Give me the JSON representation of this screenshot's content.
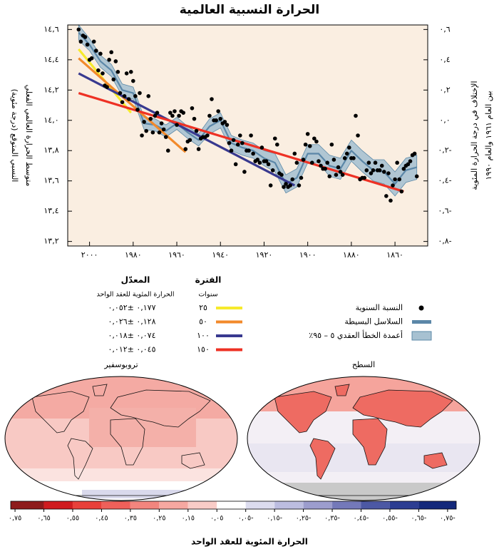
{
  "chart_data": [
    {
      "type": "line",
      "title": "الحرارة النسبية العالمية",
      "ylabel": [
        "متوسط الحرارة العالمي الفعلي",
        "النسبي المتوقع (درجة مئوية)"
      ],
      "y2label": [
        "الإختلاف في درجة الحرارة المئوية",
        "بين العام ١٩٦١ والعام ١٩٩٠"
      ],
      "xlim": [
        2010,
        1845
      ],
      "xticks": [
        {
          "value": 2000,
          "label": "٢٠٠٠"
        },
        {
          "value": 1980,
          "label": "١٩٨٠"
        },
        {
          "value": 1960,
          "label": "١٩٦٠"
        },
        {
          "value": 1940,
          "label": "١٩٤٠"
        },
        {
          "value": 1920,
          "label": "١٩٢٠"
        },
        {
          "value": 1900,
          "label": "١٩٠٠"
        },
        {
          "value": 1880,
          "label": "١٨٨٠"
        },
        {
          "value": 1860,
          "label": "١٨٦٠"
        }
      ],
      "ylim": [
        13.17,
        14.63
      ],
      "yticks": [
        {
          "value": 14.6,
          "label": "١٤,٦"
        },
        {
          "value": 14.4,
          "label": "١٤,٤"
        },
        {
          "value": 14.2,
          "label": "١٤,٢"
        },
        {
          "value": 14.0,
          "label": "١٤,٠"
        },
        {
          "value": 13.8,
          "label": "١٣,٨"
        },
        {
          "value": 13.6,
          "label": "١٣,٦"
        },
        {
          "value": 13.4,
          "label": "١٣,٤"
        },
        {
          "value": 13.2,
          "label": "١٣,٢"
        }
      ],
      "y2lim": [
        -0.83,
        0.63
      ],
      "y2ticks": [
        {
          "value": 0.6,
          "label": "٠,٦"
        },
        {
          "value": 0.4,
          "label": "٠,٤"
        },
        {
          "value": 0.2,
          "label": "٠,٢"
        },
        {
          "value": 0.0,
          "label": "٠,٠"
        },
        {
          "value": -0.2,
          "label": "-٠,٢"
        },
        {
          "value": -0.4,
          "label": "-٠,٤"
        },
        {
          "value": -0.6,
          "label": "-٠,٦"
        },
        {
          "value": -0.8,
          "label": "-٠,٨"
        }
      ],
      "series": [
        {
          "name": "النسبة السنوية",
          "style": "points",
          "color": "#000000",
          "x": [
            1850,
            1851,
            1852,
            1853,
            1854,
            1855,
            1856,
            1857,
            1858,
            1859,
            1860,
            1861,
            1862,
            1863,
            1864,
            1865,
            1866,
            1867,
            1868,
            1869,
            1870,
            1871,
            1872,
            1873,
            1874,
            1875,
            1876,
            1877,
            1878,
            1879,
            1880,
            1881,
            1882,
            1883,
            1884,
            1885,
            1886,
            1887,
            1888,
            1889,
            1890,
            1891,
            1892,
            1893,
            1894,
            1895,
            1896,
            1897,
            1898,
            1899,
            1900,
            1901,
            1902,
            1903,
            1904,
            1905,
            1906,
            1907,
            1908,
            1909,
            1910,
            1911,
            1912,
            1913,
            1914,
            1915,
            1916,
            1917,
            1918,
            1919,
            1920,
            1921,
            1922,
            1923,
            1924,
            1925,
            1926,
            1927,
            1928,
            1929,
            1930,
            1931,
            1932,
            1933,
            1934,
            1935,
            1936,
            1937,
            1938,
            1939,
            1940,
            1941,
            1942,
            1943,
            1944,
            1945,
            1946,
            1947,
            1948,
            1949,
            1950,
            1951,
            1952,
            1953,
            1954,
            1955,
            1956,
            1957,
            1958,
            1959,
            1960,
            1961,
            1962,
            1963,
            1964,
            1965,
            1966,
            1967,
            1968,
            1969,
            1970,
            1971,
            1972,
            1973,
            1974,
            1975,
            1976,
            1977,
            1978,
            1979,
            1980,
            1981,
            1982,
            1983,
            1984,
            1985,
            1986,
            1987,
            1988,
            1989,
            1990,
            1991,
            1992,
            1993,
            1994,
            1995,
            1996,
            1997,
            1998,
            1999,
            2000,
            2001,
            2002,
            2003,
            2004,
            2005
          ],
          "values": [
            13.63,
            13.78,
            13.77,
            13.73,
            13.71,
            13.7,
            13.68,
            13.53,
            13.61,
            13.72,
            13.61,
            13.57,
            13.47,
            13.65,
            13.5,
            13.66,
            13.7,
            13.67,
            13.67,
            13.72,
            13.67,
            13.65,
            13.72,
            13.67,
            13.62,
            13.62,
            13.61,
            13.9,
            14.03,
            13.75,
            13.75,
            13.82,
            13.78,
            13.75,
            13.64,
            13.66,
            13.69,
            13.64,
            13.74,
            13.84,
            13.63,
            13.72,
            13.68,
            13.68,
            13.7,
            13.73,
            13.86,
            13.88,
            13.72,
            13.83,
            13.91,
            13.84,
            13.74,
            13.62,
            13.57,
            13.72,
            13.78,
            13.61,
            13.57,
            13.56,
            13.58,
            13.56,
            13.64,
            13.65,
            13.84,
            13.88,
            13.67,
            13.57,
            13.71,
            13.73,
            13.73,
            13.82,
            13.72,
            13.74,
            13.73,
            13.78,
            13.9,
            13.8,
            13.8,
            13.66,
            13.85,
            13.9,
            13.84,
            13.71,
            13.87,
            13.8,
            13.85,
            13.97,
            13.99,
            13.98,
            14.01,
            14.06,
            14.0,
            14.0,
            14.14,
            14.03,
            13.9,
            13.89,
            13.89,
            13.88,
            13.81,
            13.93,
            14.01,
            14.08,
            13.87,
            13.86,
            13.81,
            14.05,
            14.06,
            14.03,
            13.97,
            14.06,
            14.03,
            14.05,
            13.8,
            13.89,
            13.94,
            13.98,
            13.92,
            14.05,
            14.03,
            13.92,
            14.01,
            14.16,
            13.93,
            13.99,
            13.9,
            14.18,
            14.07,
            14.16,
            14.26,
            14.32,
            14.14,
            14.31,
            14.16,
            14.12,
            14.18,
            14.32,
            14.39,
            14.27,
            14.45,
            14.4,
            14.22,
            14.23,
            14.31,
            14.44,
            14.33,
            14.46,
            14.52,
            14.41,
            14.4,
            14.5,
            14.55,
            14.56,
            14.52,
            14.6
          ]
        },
        {
          "name": "السلاسل البسيطة",
          "style": "line",
          "color": "#5b87a8",
          "x": [
            1850,
            1855,
            1860,
            1865,
            1870,
            1875,
            1880,
            1885,
            1890,
            1895,
            1900,
            1905,
            1910,
            1915,
            1920,
            1925,
            1930,
            1935,
            1940,
            1945,
            1950,
            1955,
            1960,
            1965,
            1970,
            1975,
            1980,
            1985,
            1990,
            1995,
            2000,
            2005
          ],
          "values": [
            13.69,
            13.67,
            13.58,
            13.66,
            13.67,
            13.73,
            13.8,
            13.68,
            13.7,
            13.78,
            13.78,
            13.62,
            13.58,
            13.72,
            13.75,
            13.8,
            13.82,
            13.85,
            14.0,
            13.96,
            13.87,
            13.92,
            13.98,
            13.93,
            13.97,
            13.98,
            14.18,
            14.2,
            14.33,
            14.39,
            14.5,
            14.58
          ]
        },
        {
          "name": "أعمدة الخطأ العقدي ٥ – ٩٥٪",
          "style": "band",
          "color": "#a7c1d1",
          "x": [
            1850,
            1855,
            1860,
            1865,
            1870,
            1875,
            1880,
            1885,
            1890,
            1895,
            1900,
            1905,
            1910,
            1915,
            1920,
            1925,
            1930,
            1935,
            1940,
            1945,
            1950,
            1955,
            1960,
            1965,
            1970,
            1975,
            1980,
            1985,
            1990,
            1995,
            2000,
            2005
          ],
          "lower": [
            13.61,
            13.59,
            13.5,
            13.58,
            13.6,
            13.66,
            13.73,
            13.61,
            13.63,
            13.72,
            13.72,
            13.56,
            13.52,
            13.66,
            13.7,
            13.75,
            13.77,
            13.8,
            13.95,
            13.91,
            13.83,
            13.88,
            13.94,
            13.89,
            13.93,
            13.94,
            14.14,
            14.16,
            14.29,
            14.35,
            14.46,
            14.53
          ],
          "upper": [
            13.77,
            13.75,
            13.66,
            13.74,
            13.74,
            13.8,
            13.87,
            13.75,
            13.77,
            13.84,
            13.84,
            13.68,
            13.64,
            13.78,
            13.8,
            13.85,
            13.87,
            13.9,
            14.05,
            14.01,
            13.91,
            13.96,
            14.02,
            13.97,
            14.01,
            14.02,
            14.22,
            14.24,
            14.37,
            14.43,
            14.54,
            14.63
          ]
        }
      ],
      "trends": {
        "period_title": "الفترة",
        "period_unit": "سنوات",
        "rate_title": "المعدّل",
        "rate_unit": "الحرارة المئوية للعقد الواحد",
        "lines": [
          {
            "name": "٢٥",
            "color": "#f6ea2c",
            "x": [
              2005,
              1981
            ],
            "values": [
              14.47,
              14.05
            ],
            "rate": "٠,١٧٧ ±٠,٠٥٢"
          },
          {
            "name": "٥٠",
            "color": "#f28a2b",
            "x": [
              2005,
              1956
            ],
            "values": [
              14.41,
              13.79
            ],
            "rate": "٠,١٢٨ ±٠,٠٢٦"
          },
          {
            "name": "١٠٠",
            "color": "#38398f",
            "x": [
              2005,
              1906
            ],
            "values": [
              14.31,
              13.57
            ],
            "rate": "٠,٠٧٤ ±٠,٠١٨"
          },
          {
            "name": "١٥٠",
            "color": "#ee3124",
            "x": [
              2005,
              1856
            ],
            "values": [
              14.18,
              13.53
            ],
            "rate": "٠,٠٤٥ ±٠,٠١٢"
          }
        ]
      }
    },
    {
      "type": "colorbar",
      "title": "الحرارة المئوية للعقد الواحد",
      "xlim": [
        0.765,
        -0.78
      ],
      "ticks": [
        {
          "value": 0.75,
          "label": "٠,٧٥"
        },
        {
          "value": 0.65,
          "label": "٠,٦٥"
        },
        {
          "value": 0.55,
          "label": "٠,٥٥"
        },
        {
          "value": 0.45,
          "label": "٠,٤٥"
        },
        {
          "value": 0.35,
          "label": "٠,٣٥"
        },
        {
          "value": 0.25,
          "label": "٠,٢٥"
        },
        {
          "value": 0.15,
          "label": "٠,١٥"
        },
        {
          "value": 0.05,
          "label": "٠,٠٥"
        },
        {
          "value": -0.05,
          "label": "-٠,٠٥"
        },
        {
          "value": -0.15,
          "label": "-٠,١٥"
        },
        {
          "value": -0.25,
          "label": "-٠,٢٥"
        },
        {
          "value": -0.35,
          "label": "-٠,٣٥"
        },
        {
          "value": -0.45,
          "label": "-٠,٤٥"
        },
        {
          "value": -0.55,
          "label": "-٠,٥٥"
        },
        {
          "value": -0.65,
          "label": "-٠,٦٥"
        },
        {
          "value": -0.75,
          "label": "-٠,٧٥"
        }
      ],
      "colors": [
        "#8e1b1b",
        "#d01c1f",
        "#e8403a",
        "#ef605a",
        "#f2857e",
        "#f6a8a1",
        "#f9ccc7",
        "#ffffff",
        "#dcdcee",
        "#bcbde0",
        "#9c9dcd",
        "#7479b9",
        "#4c58a4",
        "#2c3d92",
        "#14297b"
      ]
    }
  ],
  "maps": [
    {
      "title": "تروبوسفير"
    },
    {
      "title": "السطح"
    }
  ]
}
